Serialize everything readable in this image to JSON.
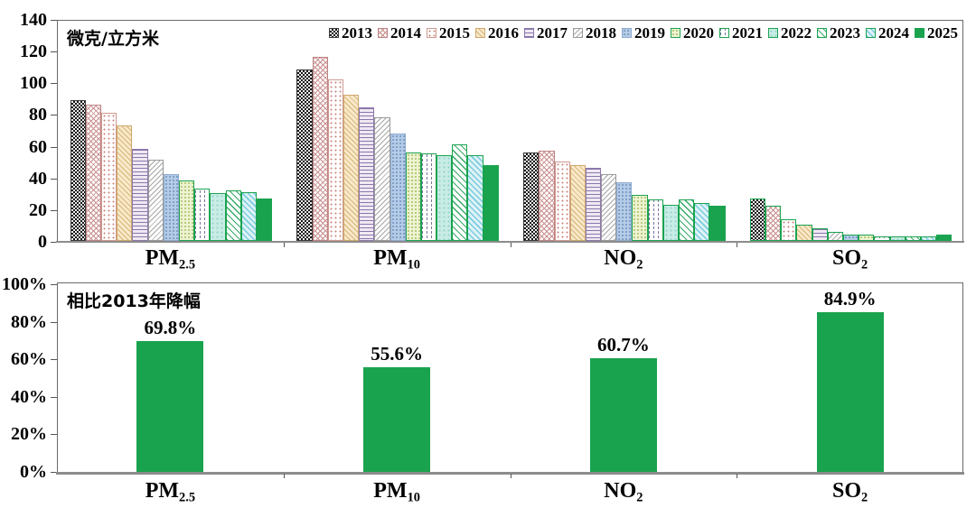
{
  "colors": {
    "accent_green": "#1aa34f",
    "axis_gray": "#8c8c8c",
    "text": "#000000"
  },
  "chart_data": [
    {
      "type": "bar",
      "title": "",
      "unit_label": "微克/立方米",
      "ylabel": "微克/立方米",
      "ylim": [
        0,
        140
      ],
      "yticks": [
        0,
        20,
        40,
        60,
        80,
        100,
        120,
        140
      ],
      "grid": false,
      "legend_position": "top-inside",
      "categories": [
        {
          "key": "pm25",
          "base": "PM",
          "sub": "2.5"
        },
        {
          "key": "pm10",
          "base": "PM",
          "sub": "10"
        },
        {
          "key": "no2",
          "base": "NO",
          "sub": "2"
        },
        {
          "key": "so2",
          "base": "SO",
          "sub": "2"
        }
      ],
      "series": [
        {
          "name": "2013",
          "pattern": "dark-checkerboard",
          "values": [
            89,
            108,
            56,
            26.5
          ]
        },
        {
          "name": "2014",
          "pattern": "pink-crosshatch",
          "values": [
            86,
            116,
            57,
            22
          ]
        },
        {
          "name": "2015",
          "pattern": "white-red-dots",
          "values": [
            81,
            102,
            50,
            13.5
          ]
        },
        {
          "name": "2016",
          "pattern": "tan-diagonal-hatch",
          "values": [
            73,
            92,
            48,
            10
          ]
        },
        {
          "name": "2017",
          "pattern": "purple-horizontal-lines",
          "values": [
            58,
            84,
            46,
            8
          ]
        },
        {
          "name": "2018",
          "pattern": "gray-diagonal-hatch",
          "values": [
            51,
            78,
            42,
            6
          ]
        },
        {
          "name": "2019",
          "pattern": "blue-dots",
          "values": [
            42,
            68,
            37,
            4
          ]
        },
        {
          "name": "2020",
          "pattern": "light-green-dots",
          "values": [
            38,
            56,
            29,
            4
          ]
        },
        {
          "name": "2021",
          "pattern": "white-vertical-dashes",
          "values": [
            33,
            55,
            26,
            3
          ]
        },
        {
          "name": "2022",
          "pattern": "light-cyan-dots",
          "values": [
            30,
            54,
            23,
            3
          ]
        },
        {
          "name": "2023",
          "pattern": "white-green-diagonal",
          "values": [
            32,
            61,
            26,
            3
          ]
        },
        {
          "name": "2024",
          "pattern": "cyan-diagonal-hatch",
          "values": [
            31,
            54,
            24,
            3
          ]
        },
        {
          "name": "2025",
          "pattern": "solid-green",
          "values": [
            27,
            48,
            22,
            4
          ]
        }
      ],
      "so2_group_border_color": "#1aa34f"
    },
    {
      "type": "bar",
      "title": "相比2013年降幅",
      "ylim": [
        0,
        100
      ],
      "ytick_labels": [
        "0%",
        "20%",
        "40%",
        "60%",
        "80%",
        "100%"
      ],
      "ytick_values": [
        0,
        20,
        40,
        60,
        80,
        100
      ],
      "grid": false,
      "bar_color": "#1aa34f",
      "categories": [
        {
          "key": "pm25",
          "base": "PM",
          "sub": "2.5"
        },
        {
          "key": "pm10",
          "base": "PM",
          "sub": "10"
        },
        {
          "key": "no2",
          "base": "NO",
          "sub": "2"
        },
        {
          "key": "so2",
          "base": "SO",
          "sub": "2"
        }
      ],
      "values": [
        69.8,
        55.6,
        60.7,
        84.9
      ],
      "bar_labels": [
        "69.8%",
        "55.6%",
        "60.7%",
        "84.9%"
      ]
    }
  ]
}
